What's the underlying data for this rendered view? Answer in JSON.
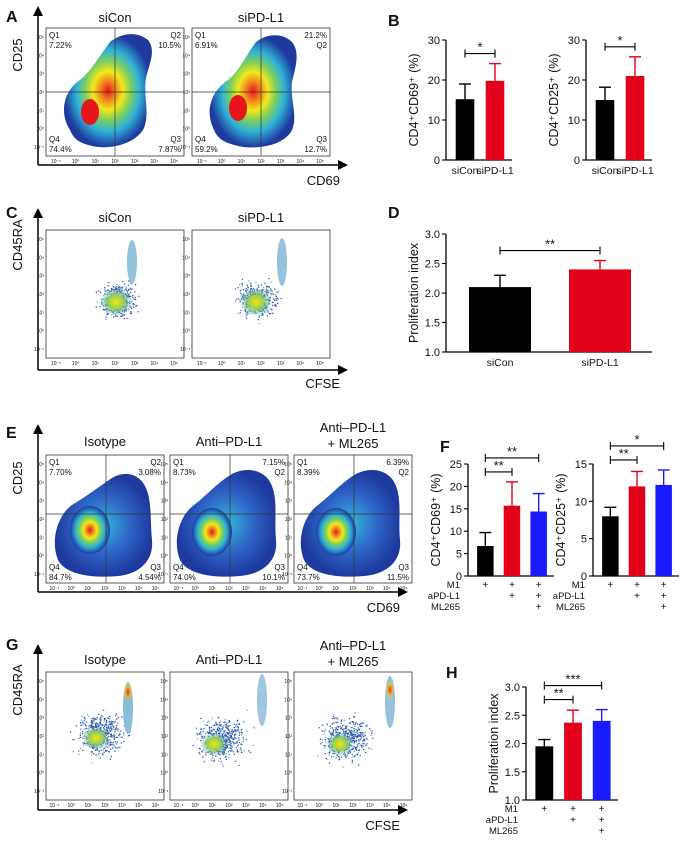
{
  "panel_letters": {
    "A": "A",
    "B": "B",
    "C": "C",
    "D": "D",
    "E": "E",
    "F": "F",
    "G": "G",
    "H": "H"
  },
  "colors": {
    "black": "#000000",
    "red": "#e3001b",
    "blue": "#1a1aff"
  },
  "tick_labels_flow": [
    "10⁻¹",
    "10⁰",
    "10¹",
    "10²",
    "10³",
    "10⁴",
    "10⁵"
  ],
  "flow_A": {
    "xlabel": "CD69",
    "ylabel": "CD25",
    "plots": [
      {
        "title": "siCon",
        "q1": "Q1",
        "q1v": "7.22%",
        "q2": "Q2",
        "q2v": "10.5%",
        "q3": "Q3",
        "q3v": "7.87%",
        "q4": "Q4",
        "q4v": "74.4%"
      },
      {
        "title": "siPD-L1",
        "q1": "Q1",
        "q1v": "6.91%",
        "q2": "Q2",
        "q2v": "21.2%",
        "q3": "Q3",
        "q3v": "12.7%",
        "q4": "Q4",
        "q4v": "59.2%"
      }
    ]
  },
  "flow_C": {
    "xlabel": "CFSE",
    "ylabel": "CD45RA",
    "plots": [
      {
        "title": "siCon"
      },
      {
        "title": "siPD-L1"
      }
    ]
  },
  "flow_E": {
    "xlabel": "CD69",
    "ylabel": "CD25",
    "plots": [
      {
        "title": "Isotype",
        "title2": "",
        "q1": "Q1",
        "q1v": "7.70%",
        "q2": "Q2",
        "q2v": "3.08%",
        "q3": "Q3",
        "q3v": "4.54%",
        "q4": "Q4",
        "q4v": "84.7%"
      },
      {
        "title": "Anti–PD-L1",
        "title2": "",
        "q1": "Q1",
        "q1v": "8.73%",
        "q2": "Q2",
        "q2v": "7.15%",
        "q3": "Q3",
        "q3v": "10.1%",
        "q4": "Q4",
        "q4v": "74.0%"
      },
      {
        "title": "Anti–PD-L1",
        "title2": "+ ML265",
        "q1": "Q1",
        "q1v": "8.39%",
        "q2": "Q2",
        "q2v": "6.39%",
        "q3": "Q3",
        "q3v": "11.5%",
        "q4": "Q4",
        "q4v": "73.7%"
      }
    ]
  },
  "flow_G": {
    "xlabel": "CFSE",
    "ylabel": "CD45RA",
    "plots": [
      {
        "title": "Isotype",
        "title2": ""
      },
      {
        "title": "Anti–PD-L1",
        "title2": ""
      },
      {
        "title": "Anti–PD-L1",
        "title2": "+ ML265"
      }
    ]
  },
  "treatment_rows": {
    "m1": "M1",
    "apdl1": "aPD-L1",
    "ml265": "ML265",
    "mark": "+"
  },
  "chart_data": [
    {
      "panel": "B",
      "type": "bar",
      "ylabel": "CD4⁺CD69⁺ (%)",
      "categories": [
        "siCon",
        "siPD-L1"
      ],
      "values": [
        15.2,
        19.8
      ],
      "errors": [
        3.8,
        4.3
      ],
      "ylim": [
        0,
        30
      ],
      "yticks": [
        0,
        10,
        20,
        30
      ],
      "significance": [
        {
          "from": 0,
          "to": 1,
          "label": "*"
        }
      ]
    },
    {
      "panel": "B",
      "type": "bar",
      "ylabel": "CD4⁺CD25⁺ (%)",
      "categories": [
        "siCon",
        "siPD-L1"
      ],
      "values": [
        15.0,
        21.0
      ],
      "errors": [
        3.2,
        4.8
      ],
      "ylim": [
        0,
        30
      ],
      "yticks": [
        0,
        10,
        20,
        30
      ],
      "significance": [
        {
          "from": 0,
          "to": 1,
          "label": "*"
        }
      ]
    },
    {
      "panel": "D",
      "type": "bar",
      "ylabel": "Proliferation index",
      "categories": [
        "siCon",
        "siPD-L1"
      ],
      "values": [
        2.1,
        2.4
      ],
      "errors": [
        0.2,
        0.15
      ],
      "ylim": [
        1.0,
        3.0
      ],
      "yticks": [
        1.0,
        1.5,
        2.0,
        2.5,
        3.0
      ],
      "tick_decimals": 1,
      "significance": [
        {
          "from": 0,
          "to": 1,
          "label": "**"
        }
      ]
    },
    {
      "panel": "F",
      "type": "bar",
      "ylabel": "CD4⁺CD69⁺ (%)",
      "categories": [
        "M1",
        "M1 + aPD-L1",
        "M1 + aPD-L1 + ML265"
      ],
      "values": [
        6.7,
        15.7,
        14.4
      ],
      "errors": [
        3.0,
        5.3,
        4.0
      ],
      "ylim": [
        0,
        25
      ],
      "yticks": [
        0,
        5,
        10,
        15,
        20,
        25
      ],
      "significance": [
        {
          "from": 0,
          "to": 1,
          "label": "**"
        },
        {
          "from": 0,
          "to": 2,
          "label": "**"
        }
      ]
    },
    {
      "panel": "F",
      "type": "bar",
      "ylabel": "CD4⁺CD25⁺ (%)",
      "categories": [
        "M1",
        "M1 + aPD-L1",
        "M1 + aPD-L1 + ML265"
      ],
      "values": [
        8.0,
        12.0,
        12.2
      ],
      "errors": [
        1.2,
        2.0,
        2.0
      ],
      "ylim": [
        0,
        15
      ],
      "yticks": [
        0,
        5,
        10,
        15
      ],
      "significance": [
        {
          "from": 0,
          "to": 1,
          "label": "**"
        },
        {
          "from": 0,
          "to": 2,
          "label": "*"
        }
      ]
    },
    {
      "panel": "H",
      "type": "bar",
      "ylabel": "Proliferation index",
      "categories": [
        "M1",
        "M1 + aPD-L1",
        "M1 + aPD-L1 + ML265"
      ],
      "values": [
        1.95,
        2.37,
        2.4
      ],
      "errors": [
        0.12,
        0.22,
        0.2
      ],
      "ylim": [
        1.0,
        3.0
      ],
      "yticks": [
        1.0,
        1.5,
        2.0,
        2.5,
        3.0
      ],
      "tick_decimals": 1,
      "significance": [
        {
          "from": 0,
          "to": 1,
          "label": "**"
        },
        {
          "from": 0,
          "to": 2,
          "label": "***"
        }
      ]
    }
  ]
}
